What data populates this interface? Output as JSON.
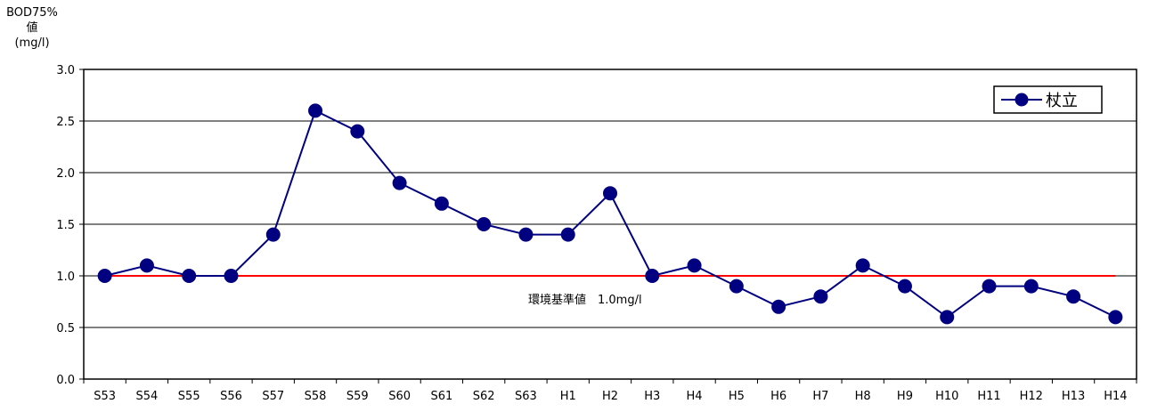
{
  "chart_data": {
    "type": "line",
    "ylabel_line1": "BOD75%値",
    "ylabel_line2": "(mg/l)",
    "categories": [
      "S53",
      "S54",
      "S55",
      "S56",
      "S57",
      "S58",
      "S59",
      "S60",
      "S61",
      "S62",
      "S63",
      "H1",
      "H2",
      "H3",
      "H4",
      "H5",
      "H6",
      "H7",
      "H8",
      "H9",
      "H10",
      "H11",
      "H12",
      "H13",
      "H14"
    ],
    "series": [
      {
        "name": "杖立",
        "color": "#000080",
        "values": [
          1.0,
          1.1,
          1.0,
          1.0,
          1.4,
          2.6,
          2.4,
          1.9,
          1.7,
          1.5,
          1.4,
          1.4,
          1.8,
          1.0,
          1.1,
          0.9,
          0.7,
          0.8,
          1.1,
          0.9,
          0.6,
          0.9,
          0.9,
          0.8,
          0.6
        ]
      }
    ],
    "ylim": [
      0,
      3.0
    ],
    "yticks": [
      "0.0",
      "0.5",
      "1.0",
      "1.5",
      "2.0",
      "2.5",
      "3.0"
    ],
    "grid": true,
    "legend_position": "top-right",
    "reference_line": {
      "value": 1.0,
      "color": "#ff0000",
      "label": "環境基準値　1.0mg/l"
    }
  }
}
